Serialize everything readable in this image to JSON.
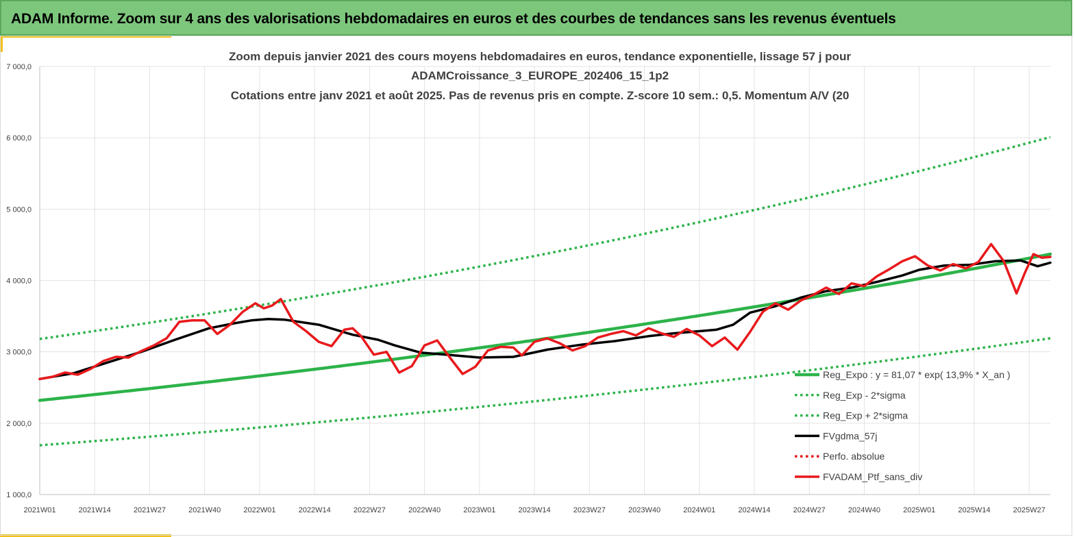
{
  "header": {
    "title": "ADAM Informe. Zoom sur 4 ans des valorisations hebdomadaires en euros et des courbes de tendances sans les revenus éventuels"
  },
  "colors": {
    "banner_bg": "#7dc77d",
    "trend_green": "#2db34a",
    "price_red": "#e8191c",
    "smooth_black": "#000000"
  },
  "chart_data": {
    "type": "line",
    "title_lines": [
      "Zoom depuis janvier 2021 des cours moyens hebdomadaires  en euros, tendance exponentielle, lissage 57 j pour",
      "ADAMCroissance_3_EUROPE_202406_15_1p2",
      "Cotations  entre janv 2021 et août 2025. Pas de revenus pris en compte. Z-score 10 sem.: 0,5. Momentum A/V (20"
    ],
    "x_tick_labels": [
      "2021W01",
      "2021W14",
      "2021W27",
      "2021W40",
      "2022W01",
      "2022W14",
      "2022W27",
      "2022W40",
      "2023W01",
      "2023W14",
      "2023W27",
      "2023W40",
      "2024W01",
      "2024W14",
      "2024W27",
      "2024W40",
      "2025W01",
      "2025W14",
      "2025W27"
    ],
    "y_tick_labels": [
      "1 000,0",
      "2 000,0",
      "3 000,0",
      "4 000,0",
      "5 000,0",
      "6 000,0",
      "7 000,0"
    ],
    "ylim": [
      1000,
      7000
    ],
    "xlim": [
      0,
      239
    ],
    "grid": true,
    "legend_position": "bottom-right",
    "series": [
      {
        "name": "Reg_Expo : y = 81,07 * exp( 13,9% *  X_an )",
        "color": "#2db34a",
        "style": "solid",
        "x": [
          0,
          239
        ],
        "values": [
          2320,
          4370
        ],
        "curve": "exponential"
      },
      {
        "name": "Reg_Exp - 2*sigma",
        "color": "#2db34a",
        "style": "dotted",
        "x": [
          0,
          239
        ],
        "values": [
          1690,
          3190
        ],
        "curve": "exponential"
      },
      {
        "name": "Reg_Exp + 2*sigma",
        "color": "#2db34a",
        "style": "dotted",
        "x": [
          0,
          239
        ],
        "values": [
          3180,
          6010
        ],
        "curve": "exponential"
      },
      {
        "name": "FVgdma_57j",
        "color": "#000000",
        "style": "solid",
        "x": [
          0,
          8,
          16,
          24,
          32,
          40,
          46,
          50,
          54,
          58,
          66,
          74,
          80,
          84,
          90,
          96,
          104,
          112,
          120,
          128,
          136,
          144,
          150,
          156,
          160,
          164,
          168,
          174,
          180,
          186,
          192,
          198,
          204,
          208,
          214,
          220,
          226,
          232,
          236,
          239
        ],
        "values": [
          2620,
          2700,
          2850,
          3000,
          3170,
          3330,
          3400,
          3440,
          3460,
          3450,
          3380,
          3240,
          3170,
          3090,
          2990,
          2960,
          2920,
          2930,
          3030,
          3100,
          3150,
          3220,
          3260,
          3290,
          3310,
          3380,
          3550,
          3640,
          3760,
          3850,
          3900,
          3980,
          4070,
          4150,
          4210,
          4220,
          4270,
          4280,
          4200,
          4250
        ]
      },
      {
        "name": "Perfo. absolue",
        "color": "#e8191c",
        "style": "dotted",
        "x": [],
        "values": []
      },
      {
        "name": "FVADAM_Ptf_sans_div",
        "color": "#e8191c",
        "style": "solid",
        "x": [
          0,
          3,
          6,
          9,
          12,
          15,
          18,
          21,
          24,
          27,
          30,
          33,
          36,
          39,
          42,
          45,
          48,
          51,
          53,
          55,
          57,
          60,
          63,
          66,
          69,
          72,
          74,
          76,
          79,
          82,
          85,
          88,
          91,
          94,
          97,
          100,
          103,
          106,
          109,
          112,
          114,
          117,
          120,
          123,
          126,
          129,
          132,
          135,
          138,
          141,
          144,
          147,
          150,
          153,
          156,
          159,
          162,
          165,
          168,
          171,
          174,
          177,
          180,
          183,
          186,
          189,
          192,
          195,
          198,
          201,
          204,
          207,
          210,
          213,
          216,
          219,
          222,
          225,
          228,
          231,
          233,
          235,
          237,
          239
        ],
        "values": [
          2620,
          2650,
          2710,
          2680,
          2760,
          2870,
          2930,
          2920,
          3010,
          3090,
          3190,
          3420,
          3440,
          3440,
          3250,
          3380,
          3560,
          3680,
          3610,
          3650,
          3740,
          3420,
          3290,
          3140,
          3080,
          3310,
          3330,
          3220,
          2960,
          3000,
          2710,
          2800,
          3090,
          3160,
          2920,
          2690,
          2790,
          3020,
          3070,
          3060,
          2950,
          3140,
          3190,
          3120,
          3020,
          3080,
          3200,
          3250,
          3290,
          3230,
          3330,
          3260,
          3210,
          3320,
          3230,
          3080,
          3200,
          3030,
          3280,
          3560,
          3680,
          3590,
          3720,
          3800,
          3900,
          3810,
          3960,
          3920,
          4060,
          4160,
          4270,
          4340,
          4210,
          4140,
          4230,
          4170,
          4260,
          4510,
          4270,
          3820,
          4110,
          4370,
          4320,
          4330
        ]
      }
    ]
  }
}
